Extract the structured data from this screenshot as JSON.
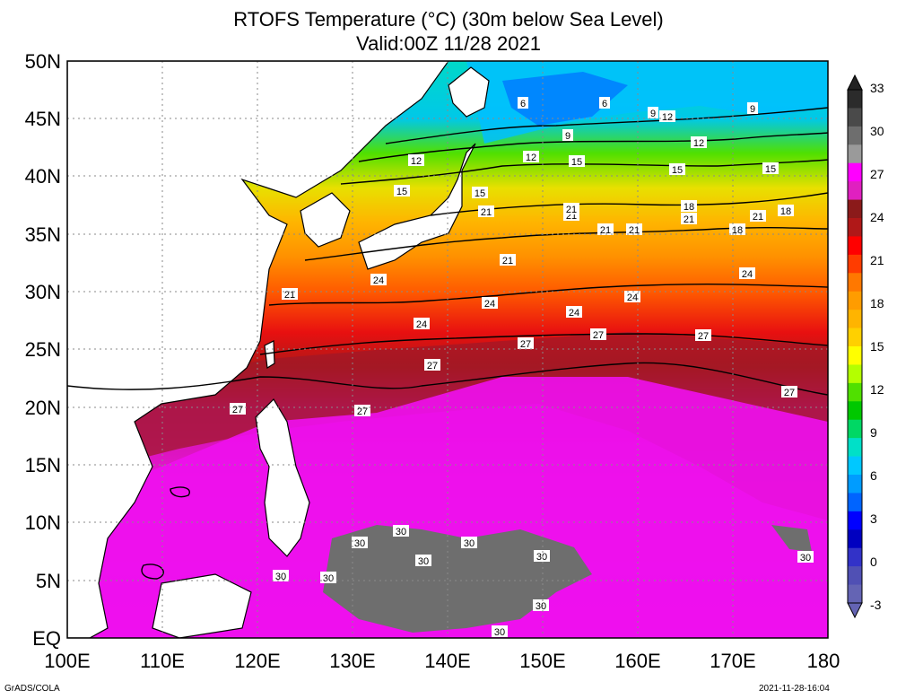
{
  "title": "RTOFS Temperature (°C) (30m below Sea Level)",
  "subtitle": "Valid:00Z 11/28 2021",
  "lat_labels": [
    "50N",
    "45N",
    "40N",
    "35N",
    "30N",
    "25N",
    "20N",
    "15N",
    "10N",
    "5N",
    "EQ"
  ],
  "lon_labels": [
    "100E",
    "110E",
    "120E",
    "130E",
    "140E",
    "150E",
    "160E",
    "170E",
    "180"
  ],
  "colorbar": {
    "labels": [
      "33",
      "30",
      "27",
      "24",
      "21",
      "18",
      "15",
      "12",
      "9",
      "6",
      "3",
      "0",
      "-3"
    ],
    "colors": [
      "#2b2b2b",
      "#4a4a4a",
      "#6e6e6e",
      "#9a9a9a",
      "#ff00ff",
      "#e020c0",
      "#8b1a1a",
      "#b01818",
      "#ff0000",
      "#ff3c00",
      "#ff7800",
      "#ff9c00",
      "#ffb400",
      "#ffd000",
      "#ffff00",
      "#b4ff00",
      "#50e000",
      "#00c800",
      "#00d864",
      "#00e0c8",
      "#00c8ff",
      "#009cff",
      "#0064ff",
      "#0000ff",
      "#0000c0",
      "#3232c8",
      "#5050b4",
      "#6464b4"
    ]
  },
  "contour_labels": {
    "c6a": "6",
    "c6b": "6",
    "c9a": "9",
    "c9b": "9",
    "c9c": "9",
    "c12a": "12",
    "c12b": "12",
    "c12c": "12",
    "c12d": "12",
    "c15a": "15",
    "c15b": "15",
    "c15c": "15",
    "c15d": "15",
    "c15e": "15",
    "c18a": "18",
    "c18b": "18",
    "c18c": "18",
    "c21a": "21",
    "c21b": "21",
    "c21c": "21",
    "c21d": "21",
    "c21e": "21",
    "c21f": "21",
    "c21g": "21",
    "c21h": "21",
    "c21i": "21",
    "c24a": "24",
    "c24b": "24",
    "c24c": "24",
    "c24d": "24",
    "c24e": "24",
    "c24f": "24",
    "c27a": "27",
    "c27b": "27",
    "c27c": "27",
    "c27d": "27",
    "c27e": "27",
    "c27f": "27",
    "c27g": "27",
    "c27h": "27",
    "c30a": "30",
    "c30b": "30",
    "c30c": "30",
    "c30d": "30",
    "c30e": "30",
    "c30f": "30",
    "c30g": "30",
    "c30h": "30",
    "c30i": "30",
    "c30j": "30"
  },
  "footer_left": "GrADS/COLA",
  "footer_right": "2021-11-28-16:04"
}
